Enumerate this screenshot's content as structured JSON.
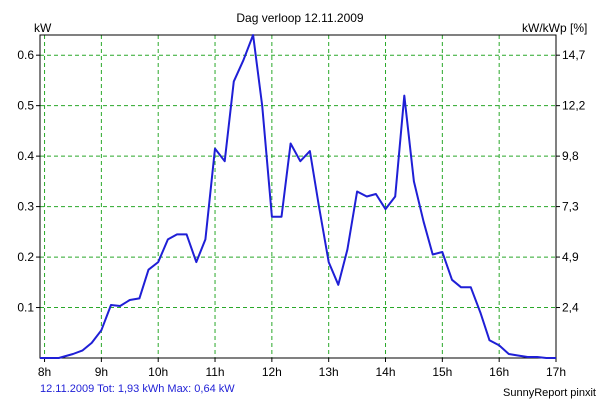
{
  "chart_data": {
    "type": "line",
    "title": "Dag  verloop 12.11.2009",
    "ylabel_left": "kW",
    "ylabel_right": "kW/kWp [%]",
    "x_ticks": [
      "8h",
      "9h",
      "10h",
      "11h",
      "12h",
      "13h",
      "14h",
      "15h",
      "16h",
      "17h"
    ],
    "y_ticks_left": [
      "0.1",
      "0.2",
      "0.3",
      "0.4",
      "0.5",
      "0.6"
    ],
    "y_ticks_right": [
      "2,4",
      "4,9",
      "7,3",
      "9,8",
      "12,2",
      "14,7"
    ],
    "xlim": [
      7.92,
      17.0
    ],
    "ylim": [
      0,
      0.64
    ],
    "grid": true,
    "line_color": "#1f1fd6",
    "grid_color": "#2aa82a",
    "series": [
      {
        "x": [
          7.92,
          8.25,
          8.5,
          8.67,
          8.83,
          9.0,
          9.17,
          9.33,
          9.5,
          9.67,
          9.83,
          10.0,
          10.17,
          10.33,
          10.5,
          10.67,
          10.83,
          11.0,
          11.17,
          11.33,
          11.5,
          11.67,
          11.83,
          12.0,
          12.17,
          12.33,
          12.5,
          12.67,
          12.83,
          13.0,
          13.17,
          13.33,
          13.5,
          13.67,
          13.83,
          14.0,
          14.17,
          14.33,
          14.5,
          14.67,
          14.83,
          15.0,
          15.17,
          15.33,
          15.5,
          15.67,
          15.83,
          16.0,
          16.17,
          16.33,
          16.5,
          16.67,
          16.83,
          17.0
        ],
        "y": [
          0.0,
          0.0,
          0.008,
          0.015,
          0.03,
          0.055,
          0.105,
          0.103,
          0.115,
          0.118,
          0.175,
          0.19,
          0.235,
          0.245,
          0.245,
          0.19,
          0.235,
          0.415,
          0.39,
          0.548,
          0.59,
          0.64,
          0.5,
          0.28,
          0.28,
          0.425,
          0.39,
          0.41,
          0.3,
          0.19,
          0.145,
          0.215,
          0.33,
          0.32,
          0.325,
          0.295,
          0.32,
          0.52,
          0.35,
          0.27,
          0.205,
          0.21,
          0.155,
          0.14,
          0.14,
          0.09,
          0.035,
          0.025,
          0.008,
          0.005,
          0.002,
          0.002,
          0.0,
          0.0
        ]
      }
    ]
  },
  "footer": {
    "left": "12.11.2009 Tot: 1,93 kWh Max: 0,64 kW",
    "right": "SunnyReport pinxit"
  }
}
